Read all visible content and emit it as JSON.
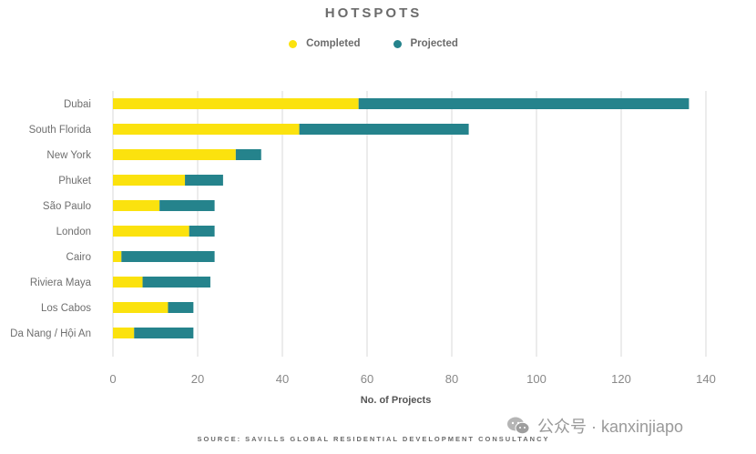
{
  "chart_data": {
    "type": "bar",
    "orientation": "horizontal",
    "stacked": true,
    "title": "HOTSPOTS",
    "xlabel": "No. of Projects",
    "ylabel": "",
    "xlim": [
      0,
      140
    ],
    "xticks": [
      0,
      20,
      40,
      60,
      80,
      100,
      120,
      140
    ],
    "grid": true,
    "legend_position": "top-center",
    "categories": [
      "Dubai",
      "South Florida",
      "New York",
      "Phuket",
      "São Paulo",
      "London",
      "Cairo",
      "Riviera Maya",
      "Los Cabos",
      "Da Nang / Hội An"
    ],
    "series": [
      {
        "name": "Completed",
        "color": "#fbe20e",
        "values": [
          58,
          44,
          29,
          17,
          11,
          18,
          2,
          7,
          13,
          5
        ]
      },
      {
        "name": "Projected",
        "color": "#25838c",
        "values": [
          78,
          40,
          6,
          9,
          13,
          6,
          22,
          16,
          6,
          14
        ]
      }
    ]
  },
  "footer": {
    "source": "SOURCE: SAVILLS GLOBAL RESIDENTIAL DEVELOPMENT CONSULTANCY"
  },
  "watermark": {
    "text": "公众号 · kanxinjiapo",
    "icon": "wechat-icon"
  }
}
